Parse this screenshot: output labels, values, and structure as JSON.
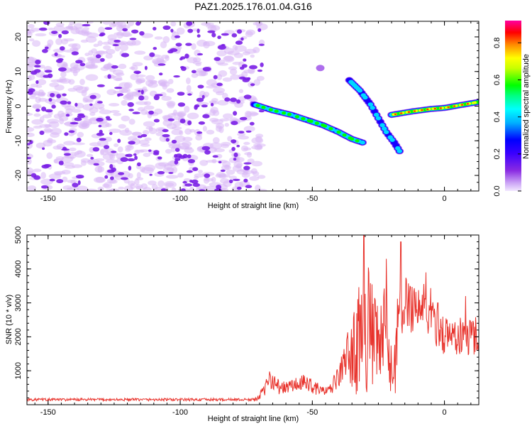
{
  "figure": {
    "title": "PAZ1.2025.176.01.04.G16"
  },
  "colors": {
    "snr_line": "#e8322b",
    "noise_purple": "#7a1ee6",
    "noise_lavender": "#d8b8f5",
    "axis": "#000000"
  },
  "chart_data": [
    {
      "type": "heatmap",
      "title": "PAZ1.2025.176.01.04.G16",
      "xlabel": "Height of straight line (km)",
      "ylabel": "Frequency (Hz)",
      "xlim": [
        -158,
        13
      ],
      "ylim": [
        -24.5,
        24.5
      ],
      "xticks": [
        -150,
        -100,
        -50,
        0
      ],
      "yticks": [
        -20,
        -10,
        0,
        10,
        20
      ],
      "colorbar": {
        "label": "Normalized spectral amplitude",
        "range": [
          0,
          0.92
        ],
        "ticks": [
          0.0,
          0.2,
          0.4,
          0.6,
          0.8
        ],
        "tick_labels": [
          "0.0",
          "0.2",
          "0.4",
          "0.6",
          "0.8"
        ],
        "colormap": "rainbow (lavender-purple-blue-cyan-green-yellow-orange-red-magenta)"
      },
      "noise_region_x": [
        -158,
        -69
      ],
      "signal_tracks": [
        {
          "description": "main descending track",
          "points": [
            [
              -72,
              0.5
            ],
            [
              -65,
              -1.2
            ],
            [
              -58,
              -2.5
            ],
            [
              -52,
              -4.0
            ],
            [
              -46,
              -5.5
            ],
            [
              -40,
              -7.5
            ],
            [
              -35,
              -9.5
            ],
            [
              -31,
              -10.5
            ]
          ],
          "peak_amplitude": 0.65
        },
        {
          "description": "upper branch",
          "points": [
            [
              -36,
              7.5
            ],
            [
              -32,
              4.5
            ],
            [
              -28,
              0.5
            ],
            [
              -25,
              -3.5
            ],
            [
              -22,
              -7.5
            ],
            [
              -19,
              -10.5
            ],
            [
              -17,
              -13
            ]
          ],
          "peak_amplitude": 0.55
        },
        {
          "description": "right track",
          "points": [
            [
              -20,
              -2.5
            ],
            [
              -12,
              -1.5
            ],
            [
              -5,
              -0.8
            ],
            [
              0,
              -0.5
            ],
            [
              6,
              0.3
            ],
            [
              13,
              1.2
            ]
          ],
          "peak_amplitude": 0.9
        },
        {
          "description": "isolated spot",
          "points": [
            [
              -47,
              11
            ]
          ],
          "peak_amplitude": 0.1
        }
      ]
    },
    {
      "type": "line",
      "xlabel": "Height of straight line (km)",
      "ylabel": "SNR (10 * v/v)",
      "xlim": [
        -158,
        13
      ],
      "ylim": [
        0,
        5000
      ],
      "xticks": [
        -150,
        -100,
        -50,
        0
      ],
      "yticks": [
        1000,
        2000,
        3000,
        4000,
        5000
      ],
      "sample_step_km": 0.2,
      "envelope": {
        "x": [
          -158,
          -80,
          -72,
          -68,
          -66,
          -62,
          -58,
          -52,
          -48,
          -44,
          -40,
          -36,
          -32,
          -30,
          -26,
          -22,
          -20,
          -18,
          -14,
          -10,
          -6,
          -2,
          0,
          4,
          8,
          13
        ],
        "y": [
          150,
          150,
          150,
          450,
          900,
          500,
          600,
          700,
          500,
          400,
          900,
          1800,
          3200,
          4200,
          2600,
          3200,
          1200,
          2700,
          3300,
          3100,
          3000,
          2500,
          2200,
          2200,
          2100,
          2300
        ]
      },
      "peaks": [
        {
          "x": -30.5,
          "y": 5000
        },
        {
          "x": -16.5,
          "y": 4800
        },
        {
          "x": -22,
          "y": 4300
        },
        {
          "x": -7,
          "y": 3900
        },
        {
          "x": 8,
          "y": 3200
        }
      ]
    }
  ]
}
